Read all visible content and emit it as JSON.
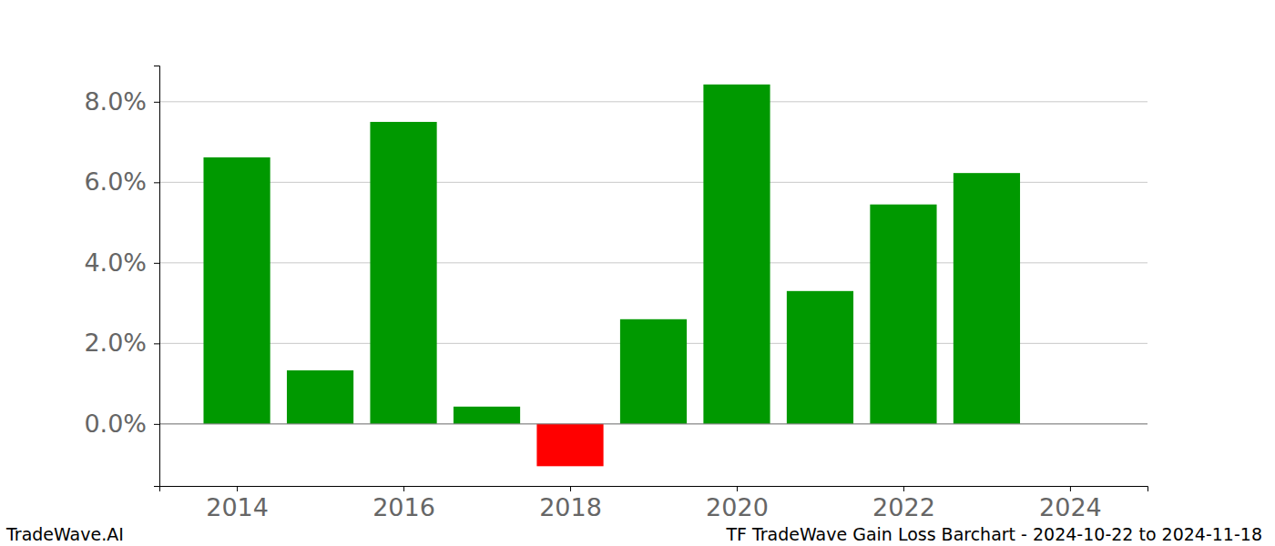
{
  "chart_data": {
    "type": "bar",
    "x": [
      2014,
      2015,
      2016,
      2017,
      2018,
      2019,
      2020,
      2021,
      2022,
      2023
    ],
    "values": [
      6.62,
      1.33,
      7.5,
      0.43,
      -1.05,
      2.6,
      8.43,
      3.3,
      5.45,
      6.23
    ],
    "colors": [
      "#009900",
      "#009900",
      "#009900",
      "#009900",
      "#ff0000",
      "#009900",
      "#009900",
      "#009900",
      "#009900",
      "#009900"
    ],
    "xlim": [
      2013.07,
      2024.93
    ],
    "xticks": [
      2014,
      2016,
      2018,
      2020,
      2022,
      2024
    ],
    "ylim": [
      -1.54,
      8.9
    ],
    "yticks": [
      {
        "value": 0,
        "label": "0.0%"
      },
      {
        "value": 2,
        "label": "2.0%"
      },
      {
        "value": 4,
        "label": "4.0%"
      },
      {
        "value": 6,
        "label": "6.0%"
      },
      {
        "value": 8,
        "label": "8.0%"
      }
    ],
    "grid": true,
    "annotations": [
      "TradeWave.AI",
      "TF TradeWave Gain Loss Barchart - 2024-10-22 to 2024-11-18"
    ]
  }
}
